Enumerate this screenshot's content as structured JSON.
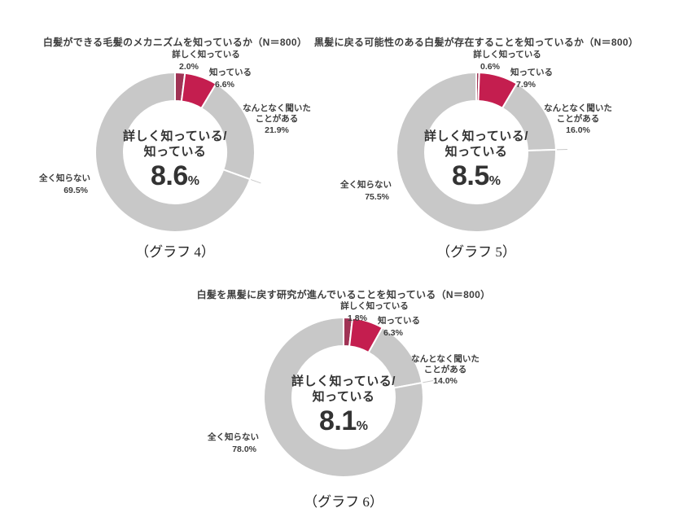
{
  "page": {
    "background": "#ffffff"
  },
  "colors": {
    "detail_know_segment": "#a03355",
    "know_segment": "#c41e4f",
    "gray_segment": "#c8c8c8",
    "leader_line": "#c9c9c9",
    "text": "#3d3d3d",
    "center_text": "#333333"
  },
  "chart_data": [
    {
      "type": "donut",
      "title": "白髪ができる毛髪のメカニズムを知っているか（N＝800）",
      "caption": "（グラフ 4）",
      "center": {
        "line1": "詳しく知っている/",
        "line2": "知っている",
        "value": "8.6",
        "unit": "%"
      },
      "categories": [
        "詳しく知っている",
        "知っている",
        "なんとなく聞いたことがある",
        "全く知らない"
      ],
      "values": [
        2.0,
        6.6,
        21.9,
        69.5
      ],
      "segments": [
        {
          "name": "詳しく知っている",
          "value": 2.0,
          "color": "#a03355"
        },
        {
          "name": "知っている",
          "value": 6.6,
          "color": "#c41e4f"
        },
        {
          "name": "なんとなく聞いたことがある",
          "value": 21.9,
          "color": "#c8c8c8"
        },
        {
          "name": "全く知らない",
          "value": 69.5,
          "color": "#c8c8c8"
        }
      ],
      "labels": [
        {
          "lines": [
            "詳しく知っている"
          ],
          "value": "2.0%"
        },
        {
          "lines": [
            "知っている"
          ],
          "value": "6.6%"
        },
        {
          "lines": [
            "なんとなく聞いた",
            "ことがある"
          ],
          "value": "21.9%"
        },
        {
          "lines": [
            "全く知らない"
          ],
          "value": "69.5%"
        }
      ]
    },
    {
      "type": "donut",
      "title": "黒髪に戻る可能性のある白髪が存在することを知っているか（N＝800）",
      "caption": "（グラフ 5）",
      "center": {
        "line1": "詳しく知っている/",
        "line2": "知っている",
        "value": "8.5",
        "unit": "%"
      },
      "categories": [
        "詳しく知っている",
        "知っている",
        "なんとなく聞いたことがある",
        "全く知らない"
      ],
      "values": [
        0.6,
        7.9,
        16.0,
        75.5
      ],
      "segments": [
        {
          "name": "詳しく知っている",
          "value": 0.6,
          "color": "#a03355"
        },
        {
          "name": "知っている",
          "value": 7.9,
          "color": "#c41e4f"
        },
        {
          "name": "なんとなく聞いたことがある",
          "value": 16.0,
          "color": "#c8c8c8"
        },
        {
          "name": "全く知らない",
          "value": 75.5,
          "color": "#c8c8c8"
        }
      ],
      "labels": [
        {
          "lines": [
            "詳しく知っている"
          ],
          "value": "0.6%"
        },
        {
          "lines": [
            "知っている"
          ],
          "value": "7.9%"
        },
        {
          "lines": [
            "なんとなく聞いた",
            "ことがある"
          ],
          "value": "16.0%"
        },
        {
          "lines": [
            "全く知らない"
          ],
          "value": "75.5%"
        }
      ]
    },
    {
      "type": "donut",
      "title": "白髪を黒髪に戻す研究が進んでいることを知っている（N＝800）",
      "caption": "（グラフ 6）",
      "center": {
        "line1": "詳しく知っている/",
        "line2": "知っている",
        "value": "8.1",
        "unit": "%"
      },
      "categories": [
        "詳しく知っている",
        "知っている",
        "なんとなく聞いたことがある",
        "全く知らない"
      ],
      "values": [
        1.8,
        6.3,
        14.0,
        78.0
      ],
      "segments": [
        {
          "name": "詳しく知っている",
          "value": 1.8,
          "color": "#a03355"
        },
        {
          "name": "知っている",
          "value": 6.3,
          "color": "#c41e4f"
        },
        {
          "name": "なんとなく聞いたことがある",
          "value": 14.0,
          "color": "#c8c8c8"
        },
        {
          "name": "全く知らない",
          "value": 78.0,
          "color": "#c8c8c8"
        }
      ],
      "labels": [
        {
          "lines": [
            "詳しく知っている"
          ],
          "value": "1.8%"
        },
        {
          "lines": [
            "知っている"
          ],
          "value": "6.3%"
        },
        {
          "lines": [
            "なんとなく聞いた",
            "ことがある"
          ],
          "value": "14.0%"
        },
        {
          "lines": [
            "全く知らない"
          ],
          "value": "78.0%"
        }
      ]
    }
  ]
}
